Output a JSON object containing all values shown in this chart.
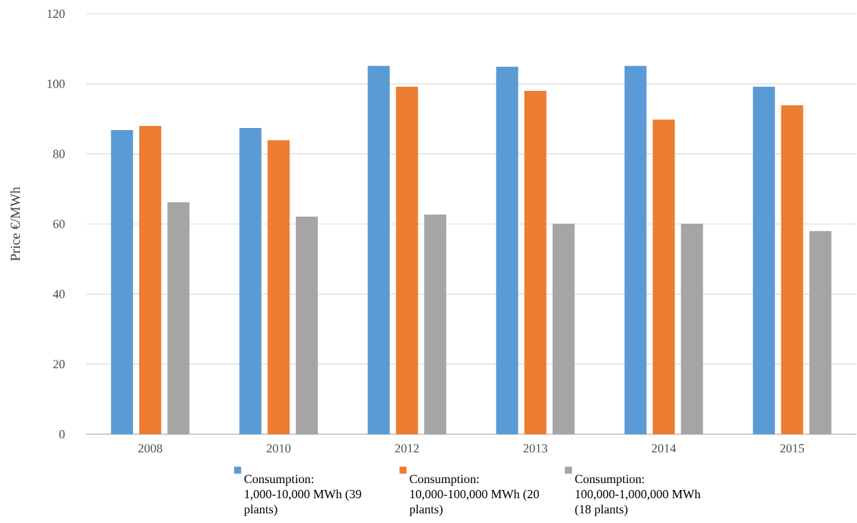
{
  "chart_data": {
    "type": "bar",
    "ylabel": "Price €/MWh",
    "categories": [
      "2008",
      "2010",
      "2012",
      "2013",
      "2014",
      "2015"
    ],
    "series": [
      {
        "name": "Consumption: 1,000-10,000 MWh (39 plants)",
        "color": "#5b9bd5",
        "values": [
          86.8,
          87.4,
          105.1,
          104.9,
          105.1,
          99.2
        ]
      },
      {
        "name": "Consumption: 10,000-100,000 MWh (20 plants)",
        "color": "#ed7d31",
        "values": [
          88.0,
          83.9,
          99.2,
          98.0,
          89.8,
          93.9
        ]
      },
      {
        "name": "Consumption: 100,000-1,000,000 MWh (18 plants)",
        "color": "#a5a5a5",
        "values": [
          66.2,
          62.1,
          62.7,
          60.1,
          60.1,
          58.0
        ]
      }
    ],
    "ylim": [
      0,
      120
    ],
    "yticks": [
      0,
      20,
      40,
      60,
      80,
      100,
      120
    ],
    "grid": "y",
    "legend": "bottom"
  }
}
